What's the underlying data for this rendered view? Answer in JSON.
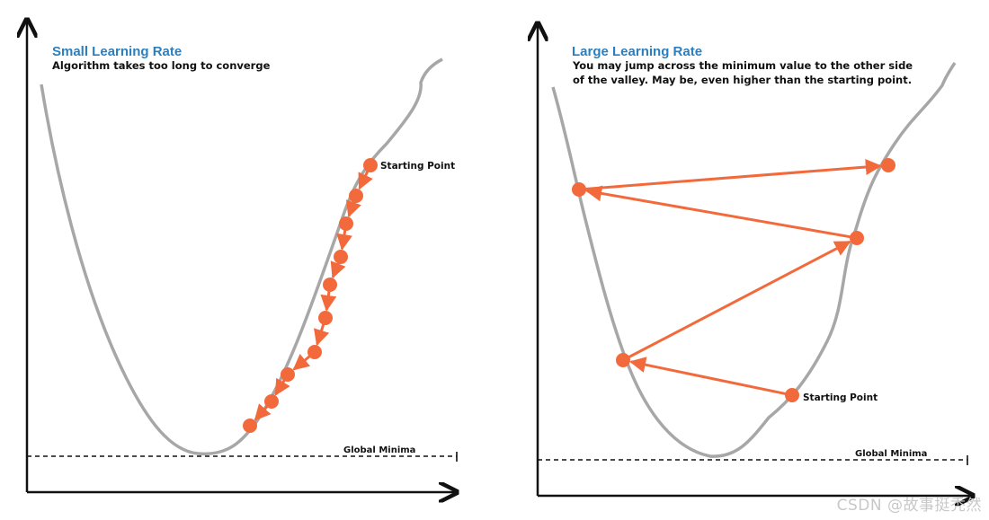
{
  "colors": {
    "curve": "#a7a7a7",
    "step": "#f26a3c",
    "axis": "#111111",
    "title": "#2a7fc0",
    "text": "#111111",
    "watermark": "#c8c8c8"
  },
  "left_panel": {
    "title": "Small Learning Rate",
    "description": [
      "Algorithm takes too long to converge"
    ],
    "start_label": "Starting Point",
    "minima_label": "Global Minima",
    "step_count": 9,
    "arrow_direction": "downhill-small-steps"
  },
  "right_panel": {
    "title": "Large Learning Rate",
    "description": [
      "You may jump across the minimum value to the other side",
      "of the valley. May be, even higher than the starting point."
    ],
    "start_label": "Starting Point",
    "minima_label": "Global Minima",
    "step_count": 4,
    "arrow_direction": "overshooting-jumps"
  },
  "watermark": "CSDN @故事挺秃然"
}
